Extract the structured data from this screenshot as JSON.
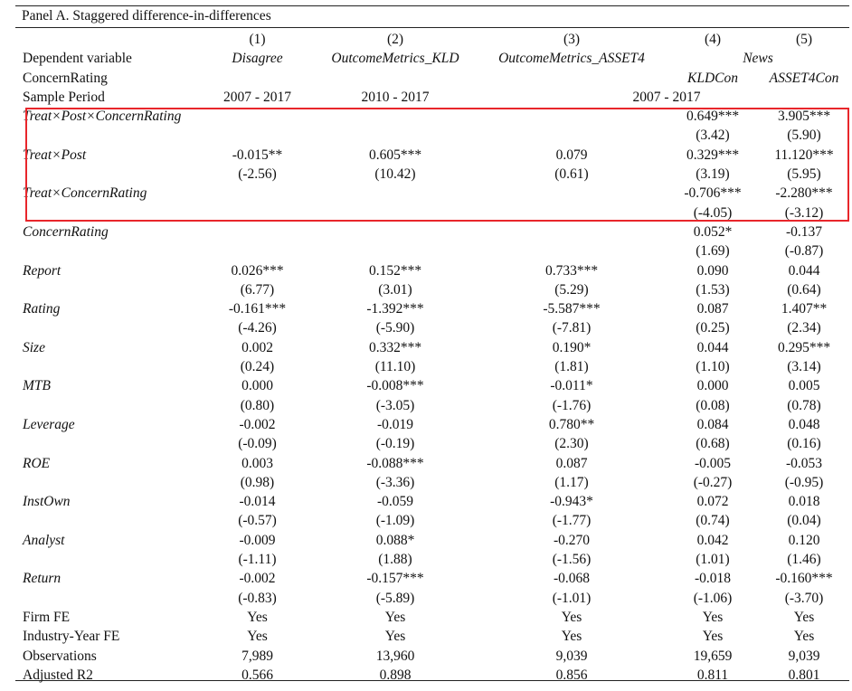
{
  "panel_title": "Panel A. Staggered difference-in-differences",
  "colors": {
    "highlight_box": "#e8262b",
    "rule": "#222222"
  },
  "header": {
    "col_numbers": [
      "(1)",
      "(2)",
      "(3)",
      "(4)",
      "(5)"
    ],
    "dependent_label": "Dependent variable",
    "dependent_vars": [
      "Disagree",
      "OutcomeMetrics_KLD",
      "OutcomeMetrics_ASSET4",
      "News"
    ],
    "concern_label": "ConcernRating",
    "concern_values": [
      "KLDCon",
      "ASSET4Con"
    ],
    "period_label": "Sample Period",
    "periods": [
      "2007 - 2017",
      "2010 - 2017",
      "2007 - 2017"
    ]
  },
  "rows": [
    {
      "label": "Treat×Post×ConcernRating",
      "coef": [
        "",
        "",
        "",
        "0.649***",
        "3.905***"
      ],
      "t": [
        "",
        "",
        "",
        "(3.42)",
        "(5.90)"
      ]
    },
    {
      "label": "Treat×Post",
      "coef": [
        "-0.015**",
        "0.605***",
        "0.079",
        "0.329***",
        "11.120***"
      ],
      "t": [
        "(-2.56)",
        "(10.42)",
        "(0.61)",
        "(3.19)",
        "(5.95)"
      ]
    },
    {
      "label": "Treat×ConcernRating",
      "coef": [
        "",
        "",
        "",
        "-0.706***",
        "-2.280***"
      ],
      "t": [
        "",
        "",
        "",
        "(-4.05)",
        "(-3.12)"
      ]
    },
    {
      "label": "ConcernRating",
      "coef": [
        "",
        "",
        "",
        "0.052*",
        "-0.137"
      ],
      "t": [
        "",
        "",
        "",
        "(1.69)",
        "(-0.87)"
      ]
    },
    {
      "label": "Report",
      "coef": [
        "0.026***",
        "0.152***",
        "0.733***",
        "0.090",
        "0.044"
      ],
      "t": [
        "(6.77)",
        "(3.01)",
        "(5.29)",
        "(1.53)",
        "(0.64)"
      ]
    },
    {
      "label": "Rating",
      "coef": [
        "-0.161***",
        "-1.392***",
        "-5.587***",
        "0.087",
        "1.407**"
      ],
      "t": [
        "(-4.26)",
        "(-5.90)",
        "(-7.81)",
        "(0.25)",
        "(2.34)"
      ]
    },
    {
      "label": "Size",
      "coef": [
        "0.002",
        "0.332***",
        "0.190*",
        "0.044",
        "0.295***"
      ],
      "t": [
        "(0.24)",
        "(11.10)",
        "(1.81)",
        "(1.10)",
        "(3.14)"
      ]
    },
    {
      "label": "MTB",
      "coef": [
        "0.000",
        "-0.008***",
        "-0.011*",
        "0.000",
        "0.005"
      ],
      "t": [
        "(0.80)",
        "(-3.05)",
        "(-1.76)",
        "(0.08)",
        "(0.78)"
      ]
    },
    {
      "label": "Leverage",
      "coef": [
        "-0.002",
        "-0.019",
        "0.780**",
        "0.084",
        "0.048"
      ],
      "t": [
        "(-0.09)",
        "(-0.19)",
        "(2.30)",
        "(0.68)",
        "(0.16)"
      ]
    },
    {
      "label": "ROE",
      "coef": [
        "0.003",
        "-0.088***",
        "0.087",
        "-0.005",
        "-0.053"
      ],
      "t": [
        "(0.98)",
        "(-3.36)",
        "(1.17)",
        "(-0.27)",
        "(-0.95)"
      ]
    },
    {
      "label": "InstOwn",
      "coef": [
        "-0.014",
        "-0.059",
        "-0.943*",
        "0.072",
        "0.018"
      ],
      "t": [
        "(-0.57)",
        "(-1.09)",
        "(-1.77)",
        "(0.74)",
        "(0.04)"
      ]
    },
    {
      "label": "Analyst",
      "coef": [
        "-0.009",
        "0.088*",
        "-0.270",
        "0.042",
        "0.120"
      ],
      "t": [
        "(-1.11)",
        "(1.88)",
        "(-1.56)",
        "(1.01)",
        "(1.46)"
      ]
    },
    {
      "label": "Return",
      "coef": [
        "-0.002",
        "-0.157***",
        "-0.068",
        "-0.018",
        "-0.160***"
      ],
      "t": [
        "(-0.83)",
        "(-5.89)",
        "(-1.01)",
        "(-1.06)",
        "(-3.70)"
      ]
    }
  ],
  "footer": [
    {
      "label": "Firm FE",
      "values": [
        "Yes",
        "Yes",
        "Yes",
        "Yes",
        "Yes"
      ]
    },
    {
      "label": "Industry-Year FE",
      "values": [
        "Yes",
        "Yes",
        "Yes",
        "Yes",
        "Yes"
      ]
    },
    {
      "label": "Observations",
      "values": [
        "7,989",
        "13,960",
        "9,039",
        "19,659",
        "9,039"
      ]
    },
    {
      "label": "Adjusted R2",
      "values": [
        "0.566",
        "0.898",
        "0.856",
        "0.811",
        "0.801"
      ]
    }
  ]
}
